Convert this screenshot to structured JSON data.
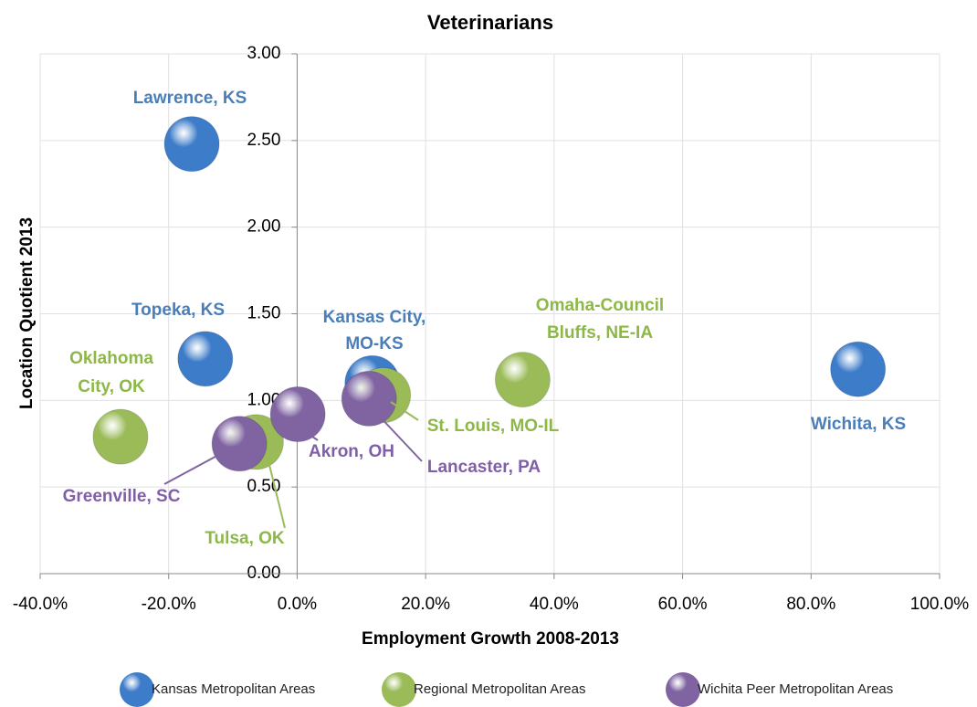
{
  "chart_data": {
    "type": "bubble",
    "title": "Veterinarians",
    "x_label": "Employment Growth 2008-2013",
    "y_label": "Location Quotient 2013",
    "xlim": [
      -40,
      100
    ],
    "xticks": [
      {
        "value": -40,
        "label": "-40.0%"
      },
      {
        "value": -20,
        "label": "-20.0%"
      },
      {
        "value": 0,
        "label": "0.0%"
      },
      {
        "value": 20,
        "label": "20.0%"
      },
      {
        "value": 40,
        "label": "40.0%"
      },
      {
        "value": 60,
        "label": "60.0%"
      },
      {
        "value": 80,
        "label": "80.0%"
      },
      {
        "value": 100,
        "label": "100.0%"
      }
    ],
    "ylim": [
      0,
      3
    ],
    "yticks": [
      {
        "value": 0,
        "label": "0.00"
      },
      {
        "value": 0.5,
        "label": "0.50"
      },
      {
        "value": 1,
        "label": "1.00"
      },
      {
        "value": 1.5,
        "label": "1.50"
      },
      {
        "value": 2,
        "label": "2.00"
      },
      {
        "value": 2.5,
        "label": "2.50"
      },
      {
        "value": 3,
        "label": "3.00"
      }
    ],
    "grid": true,
    "legend": "bottom",
    "series": [
      {
        "name": "Kansas Metropolitan Areas",
        "color": "#3d7cc9",
        "x": [
          -16.4,
          -14.3,
          11.7,
          87.3
        ],
        "values": [
          2.48,
          1.24,
          1.1,
          1.18
        ],
        "labels": [
          [
            "Lawrence, KS"
          ],
          [
            "Topeka, KS"
          ],
          [
            "Kansas City,",
            "MO-KS"
          ],
          [
            "Wichita, KS"
          ]
        ]
      },
      {
        "name": "Regional Metropolitan Areas",
        "color": "#9bbb59",
        "x": [
          -27.5,
          -6.4,
          13.4,
          35.1
        ],
        "values": [
          0.79,
          0.76,
          1.03,
          1.12
        ],
        "labels": [
          [
            "Oklahoma",
            "City, OK"
          ],
          [
            "Tulsa, OK"
          ],
          [
            "St. Louis, MO-IL"
          ],
          [
            "Omaha-Council",
            "Bluffs, NE-IA"
          ]
        ]
      },
      {
        "name": "Wichita Peer Metropolitan Areas",
        "color": "#8064a2",
        "x": [
          -9.0,
          0.1,
          11.2
        ],
        "values": [
          0.75,
          0.92,
          1.01
        ],
        "labels": [
          [
            "Greenville, SC"
          ],
          [
            "Akron, OH"
          ],
          [
            "Lancaster, PA"
          ]
        ]
      }
    ]
  }
}
